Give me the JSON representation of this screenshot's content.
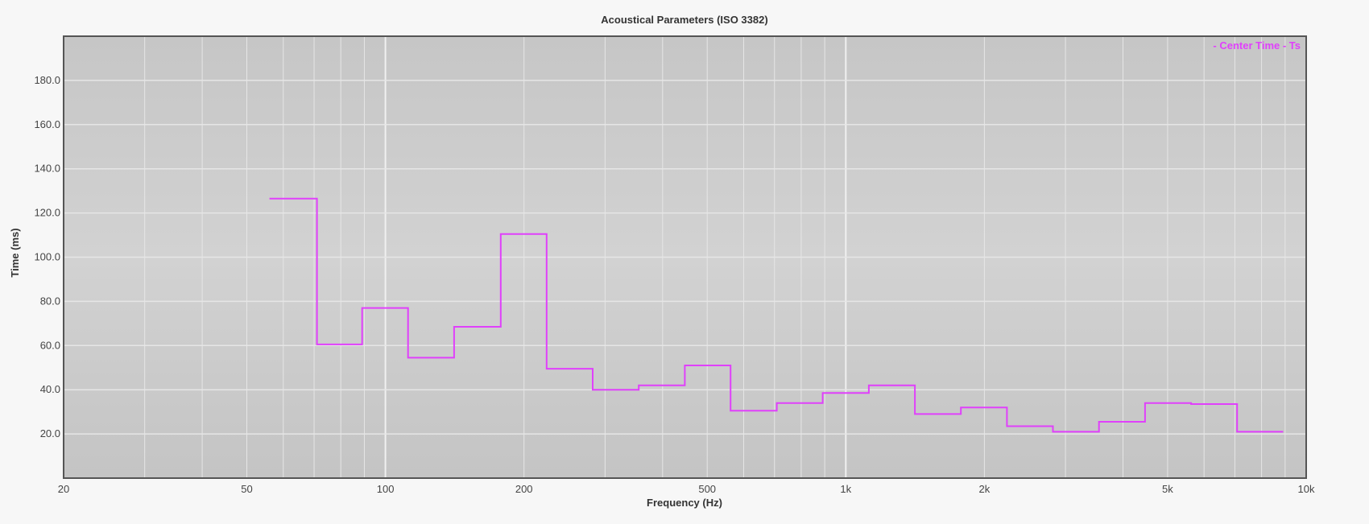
{
  "chart_data": {
    "type": "line",
    "step": true,
    "title": "Acoustical Parameters (ISO 3382)",
    "xlabel": "Frequency (Hz)",
    "ylabel": "Time (ms)",
    "x_scale": "log",
    "xlim": [
      20,
      10000
    ],
    "ylim": [
      0,
      200
    ],
    "x_ticks": [
      {
        "value": 20,
        "label": "20"
      },
      {
        "value": 50,
        "label": "50"
      },
      {
        "value": 100,
        "label": "100"
      },
      {
        "value": 200,
        "label": "200"
      },
      {
        "value": 500,
        "label": "500"
      },
      {
        "value": 1000,
        "label": "1k"
      },
      {
        "value": 2000,
        "label": "2k"
      },
      {
        "value": 5000,
        "label": "5k"
      },
      {
        "value": 10000,
        "label": "10k"
      }
    ],
    "y_ticks": [
      {
        "value": 20,
        "label": "20.0"
      },
      {
        "value": 40,
        "label": "40.0"
      },
      {
        "value": 60,
        "label": "60.0"
      },
      {
        "value": 80,
        "label": "80.0"
      },
      {
        "value": 100,
        "label": "100.0"
      },
      {
        "value": 120,
        "label": "120.0"
      },
      {
        "value": 140,
        "label": "140.0"
      },
      {
        "value": 160,
        "label": "160.0"
      },
      {
        "value": 180,
        "label": "180.0"
      }
    ],
    "grid": true,
    "legend_position": "top-right",
    "series": [
      {
        "name": "- Center Time - Ts",
        "color": "#e040fb",
        "points": [
          {
            "x_start": 56,
            "x_end": 71,
            "y": 126.5
          },
          {
            "x_start": 71,
            "x_end": 89,
            "y": 60.5
          },
          {
            "x_start": 89,
            "x_end": 112,
            "y": 77
          },
          {
            "x_start": 112,
            "x_end": 141,
            "y": 54.5
          },
          {
            "x_start": 141,
            "x_end": 178,
            "y": 68.5
          },
          {
            "x_start": 178,
            "x_end": 224,
            "y": 110.5
          },
          {
            "x_start": 224,
            "x_end": 282,
            "y": 49.5
          },
          {
            "x_start": 282,
            "x_end": 355,
            "y": 40
          },
          {
            "x_start": 355,
            "x_end": 447,
            "y": 42
          },
          {
            "x_start": 447,
            "x_end": 562,
            "y": 51
          },
          {
            "x_start": 562,
            "x_end": 708,
            "y": 30.5
          },
          {
            "x_start": 708,
            "x_end": 891,
            "y": 34
          },
          {
            "x_start": 891,
            "x_end": 1122,
            "y": 38.5
          },
          {
            "x_start": 1122,
            "x_end": 1413,
            "y": 42
          },
          {
            "x_start": 1413,
            "x_end": 1778,
            "y": 29
          },
          {
            "x_start": 1778,
            "x_end": 2239,
            "y": 32
          },
          {
            "x_start": 2239,
            "x_end": 2818,
            "y": 23.5
          },
          {
            "x_start": 2818,
            "x_end": 3548,
            "y": 21
          },
          {
            "x_start": 3548,
            "x_end": 4467,
            "y": 25.5
          },
          {
            "x_start": 4467,
            "x_end": 5623,
            "y": 34
          },
          {
            "x_start": 5623,
            "x_end": 7079,
            "y": 33.5
          },
          {
            "x_start": 7079,
            "x_end": 8913,
            "y": 21
          }
        ]
      }
    ]
  },
  "colors": {
    "background": "#f7f7f7",
    "plot_fill": "#cccccc",
    "grid_line": "#e6e6e6",
    "plot_border": "#555555",
    "series": "#e040fb"
  }
}
